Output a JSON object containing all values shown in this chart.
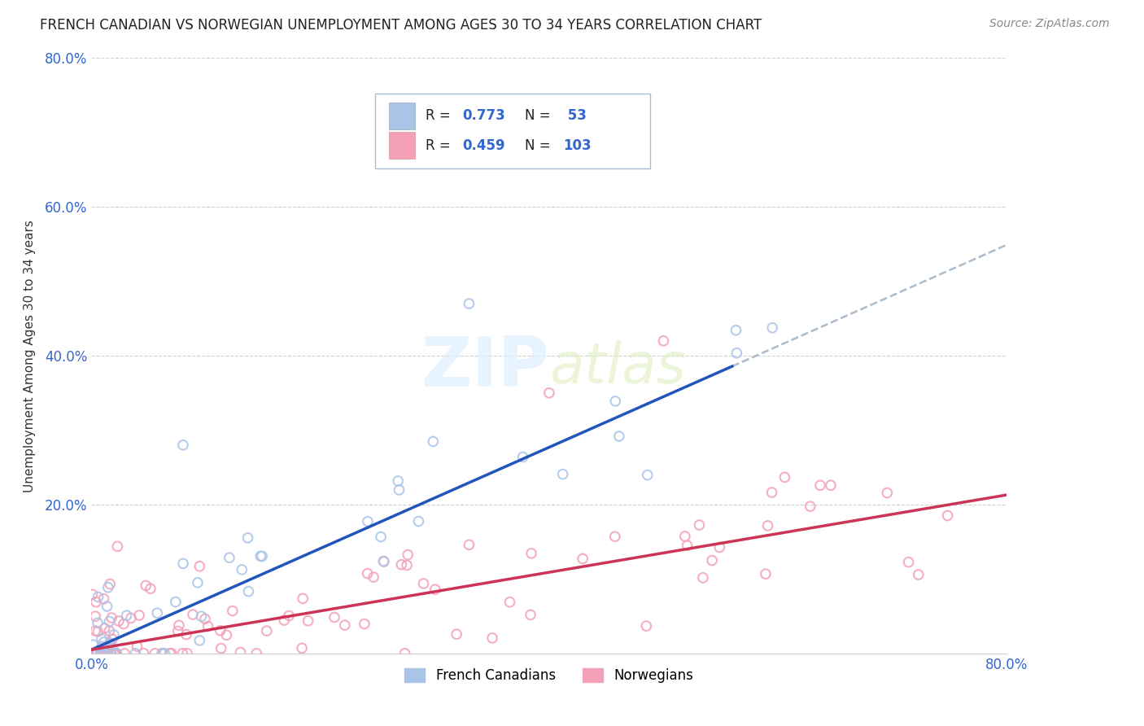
{
  "title": "FRENCH CANADIAN VS NORWEGIAN UNEMPLOYMENT AMONG AGES 30 TO 34 YEARS CORRELATION CHART",
  "source": "Source: ZipAtlas.com",
  "ylabel": "Unemployment Among Ages 30 to 34 years",
  "xlim": [
    0.0,
    0.8
  ],
  "ylim": [
    0.0,
    0.8
  ],
  "xtick_labels": [
    "0.0%",
    "80.0%"
  ],
  "ytick_labels": [
    "20.0%",
    "40.0%",
    "60.0%",
    "80.0%"
  ],
  "ytick_values": [
    0.2,
    0.4,
    0.6,
    0.8
  ],
  "grid_color": "#cccccc",
  "background_color": "#ffffff",
  "watermark_text": "ZIPatlas",
  "legend_box_color": "#f0f4ff",
  "legend_border_color": "#aabbcc",
  "french_scatter_color": "#aac4e8",
  "norwegian_scatter_color": "#f4a0b8",
  "french_line_color": "#2255bb",
  "norwegian_line_color": "#cc3355",
  "dashed_ext_color": "#aabbcc",
  "french_line_slope": 0.68,
  "french_line_intercept": 0.005,
  "french_line_x_solid_end": 0.56,
  "norwegian_line_slope": 0.26,
  "norwegian_line_intercept": 0.005,
  "tick_color": "#3366cc",
  "title_fontsize": 12,
  "axis_fontsize": 12
}
